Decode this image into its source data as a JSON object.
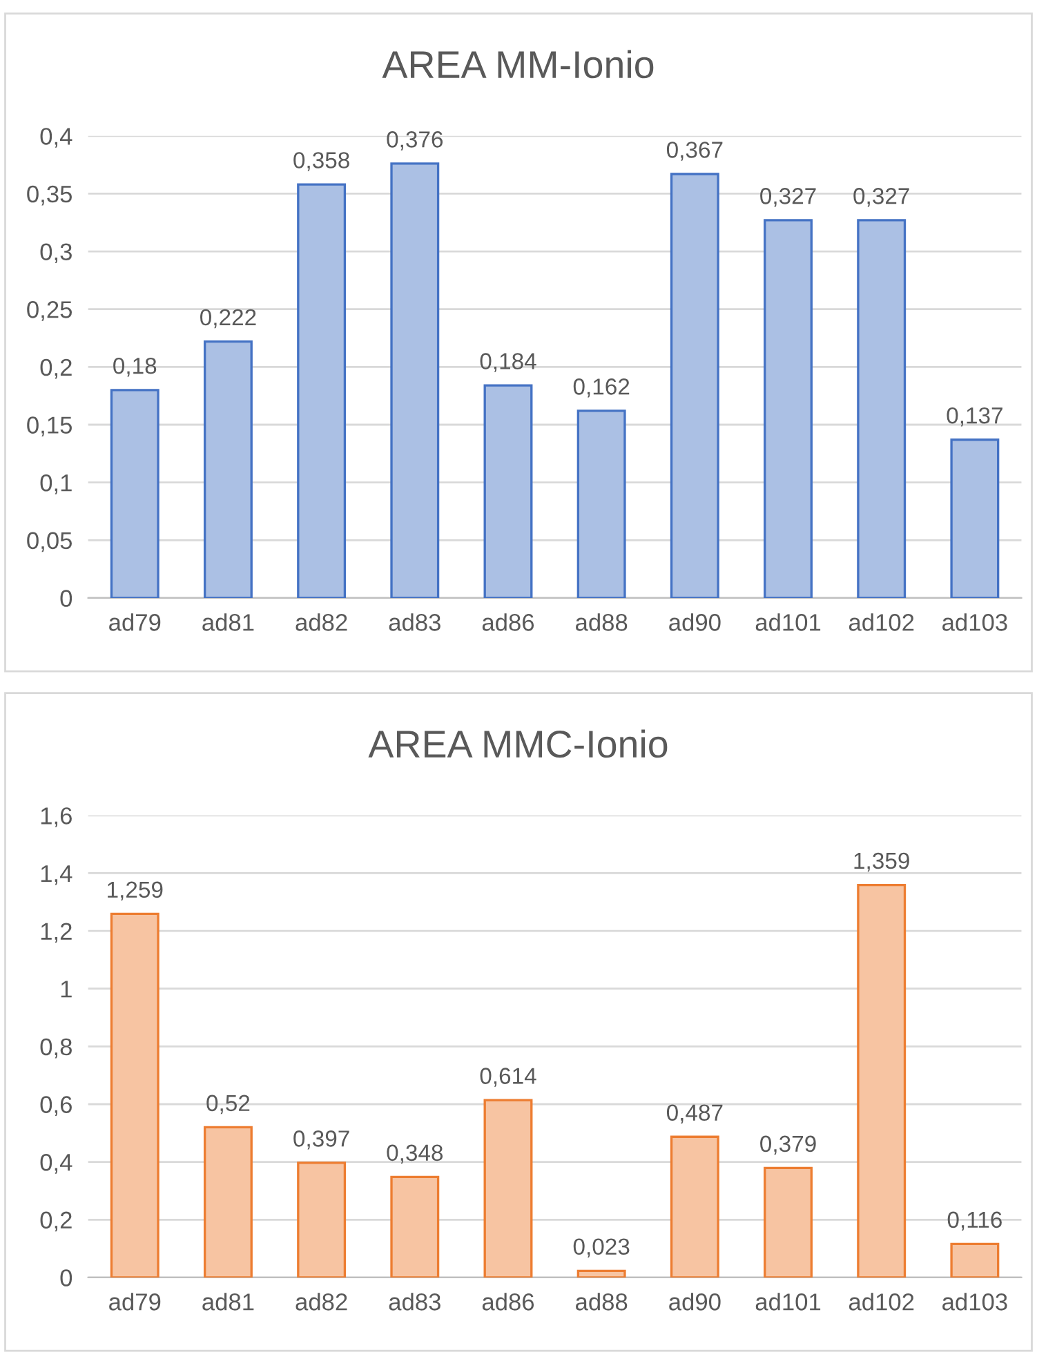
{
  "chart_data": [
    {
      "type": "bar",
      "title": "AREA MM-Ionio",
      "categories": [
        "ad79",
        "ad81",
        "ad82",
        "ad83",
        "ad86",
        "ad88",
        "ad90",
        "ad101",
        "ad102",
        "ad103"
      ],
      "values": [
        0.18,
        0.222,
        0.358,
        0.376,
        0.184,
        0.162,
        0.367,
        0.327,
        0.327,
        0.137
      ],
      "value_labels": [
        "0,18",
        "0,222",
        "0,358",
        "0,376",
        "0,184",
        "0,162",
        "0,367",
        "0,327",
        "0,327",
        "0,137"
      ],
      "color": "#4472c4",
      "ylim": [
        0,
        0.4
      ],
      "yticks": [
        0,
        {
          "value": 0.05,
          "label": "0,05"
        },
        {
          "value": 0.1,
          "label": "0,1"
        },
        {
          "value": 0.15,
          "label": "0,15"
        },
        {
          "value": 0.2,
          "label": "0,2"
        },
        {
          "value": 0.25,
          "label": "0,25"
        },
        {
          "value": 0.3,
          "label": "0,3"
        },
        {
          "value": 0.35,
          "label": "0,35"
        },
        {
          "value": 0.4,
          "label": "0,4"
        }
      ],
      "grid": "y",
      "legend": false
    },
    {
      "type": "bar",
      "title": "AREA MMC-Ionio",
      "categories": [
        "ad79",
        "ad81",
        "ad82",
        "ad83",
        "ad86",
        "ad88",
        "ad90",
        "ad101",
        "ad102",
        "ad103"
      ],
      "values": [
        1.259,
        0.52,
        0.397,
        0.348,
        0.614,
        0.023,
        0.487,
        0.379,
        1.359,
        0.116
      ],
      "value_labels": [
        "1,259",
        "0,52",
        "0,397",
        "0,348",
        "0,614",
        "0,023",
        "0,487",
        "0,379",
        "1,359",
        "0,116"
      ],
      "color": "#ed7d31",
      "ylim": [
        0,
        1.6
      ],
      "yticks": [
        0,
        {
          "value": 0.2,
          "label": "0,2"
        },
        {
          "value": 0.4,
          "label": "0,4"
        },
        {
          "value": 0.6,
          "label": "0,6"
        },
        {
          "value": 0.8,
          "label": "0,8"
        },
        1,
        {
          "value": 1.2,
          "label": "1,2"
        },
        {
          "value": 1.4,
          "label": "1,4"
        },
        {
          "value": 1.6,
          "label": "1,6"
        }
      ],
      "grid": "y",
      "legend": false
    }
  ]
}
